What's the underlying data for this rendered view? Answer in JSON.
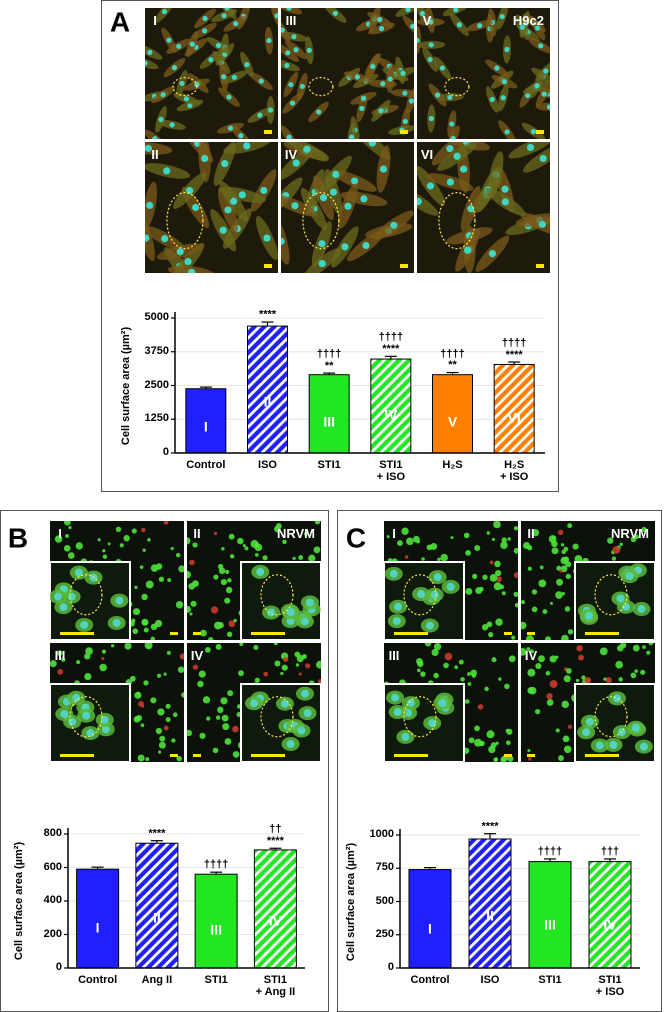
{
  "panels": [
    {
      "letter": "A",
      "cell_type": "H9c2",
      "tiles": [
        "I",
        "III",
        "V",
        "II",
        "IV",
        "VI"
      ]
    },
    {
      "letter": "B",
      "cell_type": "NRVM",
      "tiles": [
        "I",
        "II",
        "III",
        "IV"
      ]
    },
    {
      "letter": "C",
      "cell_type": "NRVM",
      "tiles": [
        "I",
        "II",
        "III",
        "IV"
      ]
    }
  ],
  "chart_data": [
    {
      "type": "bar",
      "ylabel": "Cell surface area (µm²)",
      "categories": [
        "Control",
        "ISO",
        "STI1",
        "STI1\n+ ISO",
        "H₂S",
        "H₂S\n+ ISO"
      ],
      "values": [
        2380,
        4700,
        2900,
        3480,
        2900,
        3280
      ],
      "errors": [
        60,
        150,
        60,
        100,
        80,
        90
      ],
      "colors": [
        "#1f1fff",
        "#1f1fff",
        "#22e622",
        "#22e622",
        "#ff8000",
        "#ff8000"
      ],
      "hatched": [
        false,
        true,
        false,
        true,
        false,
        true
      ],
      "bar_labels": [
        "I",
        "II",
        "III",
        "IV",
        "V",
        "VI"
      ],
      "annotations": [
        null,
        "****",
        "††††\n**",
        "††††\n****",
        "††††\n**",
        "††††\n****"
      ],
      "ylim": [
        0,
        5000
      ],
      "yticks": [
        0,
        1250,
        2500,
        3750,
        5000
      ]
    },
    {
      "type": "bar",
      "ylabel": "Cell surface area (µm²)",
      "categories": [
        "Control",
        "Ang II",
        "STI1",
        "STI1\n+ Ang II"
      ],
      "values": [
        590,
        745,
        560,
        705
      ],
      "errors": [
        12,
        15,
        12,
        10
      ],
      "colors": [
        "#1f1fff",
        "#1f1fff",
        "#22e622",
        "#22e622"
      ],
      "hatched": [
        false,
        true,
        false,
        true
      ],
      "bar_labels": [
        "I",
        "II",
        "III",
        "IV"
      ],
      "annotations": [
        null,
        "****",
        "††††",
        "††\n****"
      ],
      "ylim": [
        0,
        800
      ],
      "yticks": [
        0,
        200,
        400,
        600,
        800
      ]
    },
    {
      "type": "bar",
      "ylabel": "Cell surface area (µm²)",
      "categories": [
        "Control",
        "ISO",
        "STI1",
        "STI1\n+ ISO"
      ],
      "values": [
        740,
        970,
        800,
        800
      ],
      "errors": [
        15,
        40,
        20,
        20
      ],
      "colors": [
        "#1f1fff",
        "#1f1fff",
        "#22e622",
        "#22e622"
      ],
      "hatched": [
        false,
        true,
        false,
        true
      ],
      "bar_labels": [
        "I",
        "II",
        "III",
        "IV"
      ],
      "annotations": [
        null,
        "****",
        "††††",
        "†††"
      ],
      "ylim": [
        0,
        1000
      ],
      "yticks": [
        0,
        250,
        500,
        750,
        1000
      ]
    }
  ]
}
